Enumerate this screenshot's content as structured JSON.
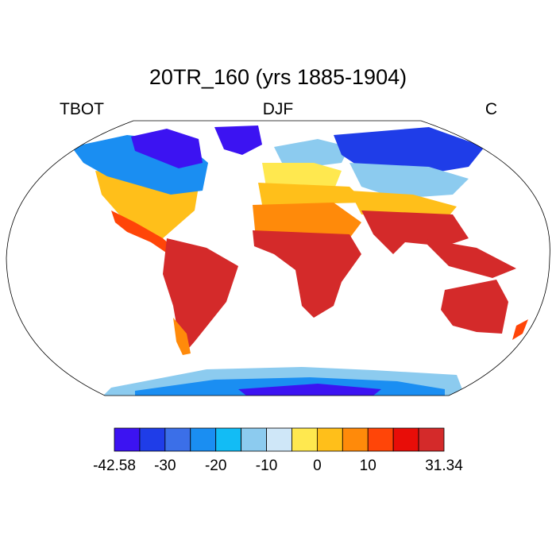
{
  "title": "20TR_160 (yrs 1885-1904)",
  "left_label": "TBOT",
  "center_label": "DJF",
  "right_label": "C",
  "colorbar": {
    "colors": [
      "#3c13f2",
      "#1f3de8",
      "#3b6fe8",
      "#1a8ef2",
      "#12bcf5",
      "#8ccbef",
      "#cfe7f8",
      "#ffe84f",
      "#ffbf1a",
      "#ff8a0a",
      "#ff4508",
      "#e80d08",
      "#d42a2a"
    ],
    "tick_labels": [
      "-42.58",
      "-30",
      "-20",
      "-10",
      "0",
      "10",
      "31.34"
    ],
    "tick_edge_index": [
      0,
      2,
      4,
      6,
      8,
      10,
      13
    ]
  }
}
